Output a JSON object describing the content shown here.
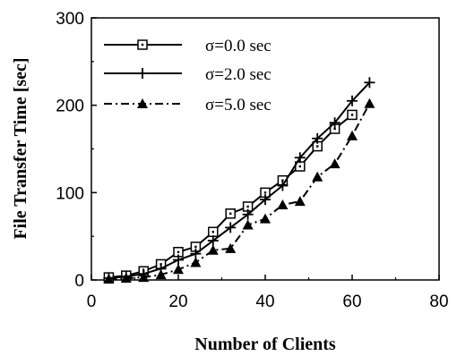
{
  "chart_data": {
    "type": "line",
    "xlabel": "Number of Clients",
    "ylabel": "File Transfer Time [sec]",
    "xlim": [
      0,
      80
    ],
    "ylim": [
      0,
      300
    ],
    "xticks": [
      0,
      20,
      40,
      60,
      80
    ],
    "yticks": [
      0,
      100,
      200,
      300
    ],
    "legend_position": "top-left",
    "series": [
      {
        "name": "σ=0.0 sec",
        "marker": "square-dot",
        "line": "solid",
        "x": [
          4,
          8,
          12,
          16,
          20,
          24,
          28,
          32,
          36,
          40,
          44,
          48,
          52,
          56,
          60
        ],
        "y": [
          3,
          5,
          10,
          18,
          32,
          38,
          55,
          76,
          84,
          100,
          114,
          130,
          153,
          173,
          189
        ]
      },
      {
        "name": "σ=2.0 sec",
        "marker": "plus",
        "line": "solid",
        "x": [
          4,
          8,
          12,
          16,
          20,
          24,
          28,
          32,
          36,
          40,
          44,
          48,
          52,
          56,
          60,
          64
        ],
        "y": [
          2,
          4,
          7,
          13,
          23,
          30,
          45,
          60,
          75,
          92,
          108,
          140,
          162,
          180,
          205,
          226
        ]
      },
      {
        "name": "σ=5.0 sec",
        "marker": "filled-triangle",
        "line": "dash-dot",
        "x": [
          4,
          8,
          12,
          16,
          20,
          24,
          28,
          32,
          36,
          40,
          44,
          48,
          52,
          56,
          60,
          64
        ],
        "y": [
          1,
          2,
          3,
          6,
          12,
          20,
          34,
          36,
          63,
          70,
          86,
          90,
          118,
          133,
          165,
          202
        ]
      }
    ]
  }
}
